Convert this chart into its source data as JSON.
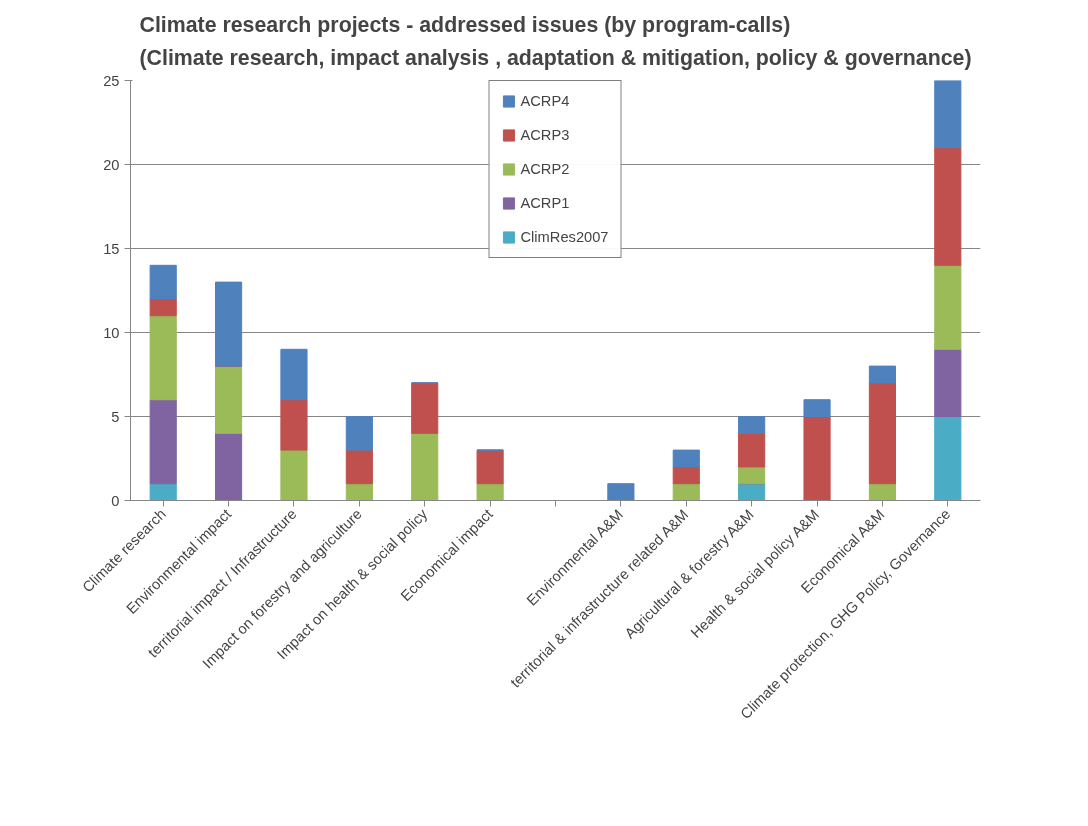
{
  "chart_data": {
    "type": "bar",
    "stacked": true,
    "title": "Climate research projects - addressed issues (by program-calls)\n(Climate research, impact analysis , adaptation & mitigation, policy & governance)",
    "categories": [
      "Climate research",
      "Environmental impact",
      "territorial impact / Infrastructure",
      "Impact on forestry and agriculture",
      "Impact on health & social policy",
      "Economical impact",
      null,
      "Environmental A&M",
      "territorial & infrastructure related A&M",
      "Agricultural & forestry A&M",
      "Health & social policy A&M",
      "Economical A&M",
      "Climate protection, GHG Policy, Governance"
    ],
    "series": [
      {
        "name": "ClimRes2007",
        "color": "#4bacc6",
        "values": [
          1,
          0,
          0,
          0,
          0,
          0,
          0,
          0,
          0,
          1,
          0,
          0,
          5
        ]
      },
      {
        "name": "ACRP1",
        "color": "#8064a2",
        "values": [
          5,
          4,
          0,
          0,
          0,
          0,
          0,
          0,
          0,
          0,
          0,
          0,
          4
        ]
      },
      {
        "name": "ACRP2",
        "color": "#9bbb59",
        "values": [
          5,
          4,
          3,
          1,
          4,
          1,
          0,
          0,
          1,
          1,
          0,
          1,
          5
        ]
      },
      {
        "name": "ACRP3",
        "color": "#c0504d",
        "values": [
          1,
          0,
          3,
          2,
          3,
          2,
          0,
          0,
          1,
          2,
          5,
          6,
          7
        ]
      },
      {
        "name": "ACRP4",
        "color": "#4f81bd",
        "values": [
          2,
          5,
          3,
          2,
          0,
          0,
          0,
          1,
          1,
          1,
          1,
          1,
          4
        ]
      }
    ],
    "ylim": [
      0,
      25
    ],
    "yticks": [
      0,
      5,
      10,
      15,
      20,
      25
    ],
    "grid": "y",
    "legend": "top"
  }
}
